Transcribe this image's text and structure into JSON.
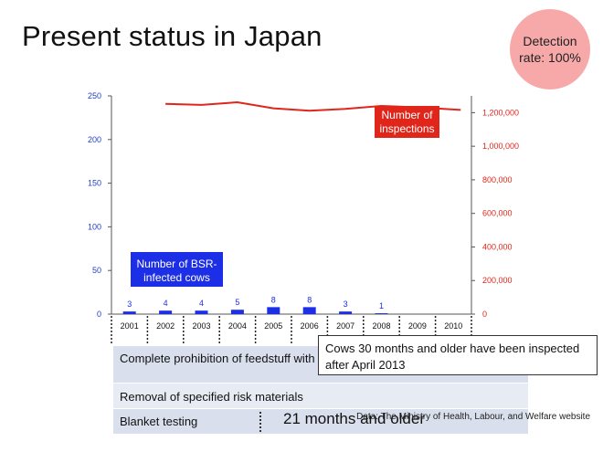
{
  "slide": {
    "title": "Present status in Japan",
    "detection_badge": "Detection rate: 100%",
    "source": "Data: The Ministry of Health, Labour, and Welfare website"
  },
  "measures": {
    "row1": "Complete prohibition of feedstuff with BMB",
    "row2": "Removal of specified risk materials",
    "row3": "Blanket testing",
    "row3_age": "21 months and older",
    "callout": "Cows 30 months and older have been inspected after April 2013"
  },
  "colors": {
    "bars": "#1d2fe6",
    "line": "#e0261b",
    "left_axis": "#1f3fbf",
    "right_axis": "#e0261b"
  },
  "chart_data": {
    "type": "bar",
    "categories": [
      "2001",
      "2002",
      "2003",
      "2004",
      "2005",
      "2006",
      "2007",
      "2008",
      "2009",
      "2010"
    ],
    "series": [
      {
        "name": "Number of BSR-infected cows",
        "type": "bar",
        "axis": "left",
        "values": [
          3,
          4,
          4,
          5,
          8,
          8,
          3,
          1,
          0,
          0
        ],
        "data_labels": [
          "3",
          "4",
          "4",
          "5",
          "8",
          "8",
          "3",
          "1",
          "",
          ""
        ]
      },
      {
        "name": "Number of inspections",
        "type": "line",
        "axis": "right",
        "values": [
          null,
          1252000,
          1246000,
          1262000,
          1226000,
          1212000,
          1223000,
          1240000,
          1232000,
          1216000
        ]
      }
    ],
    "y_left": {
      "ylim": [
        0,
        250
      ],
      "ticks": [
        "0",
        "50",
        "100",
        "150",
        "200",
        "250"
      ]
    },
    "y_right": {
      "ylim": [
        0,
        1300000
      ],
      "ticks": [
        "0",
        "200,000",
        "400,000",
        "600,000",
        "800,000",
        "1,000,000",
        "1,200,000"
      ]
    },
    "legend": "inline labels",
    "grid": false
  }
}
